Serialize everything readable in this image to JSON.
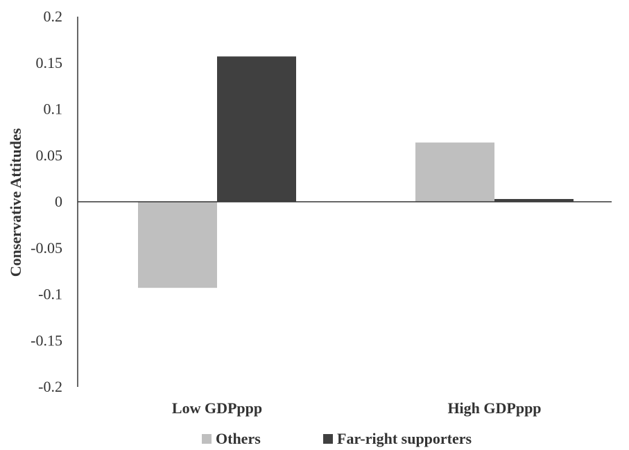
{
  "chart_data": {
    "type": "bar",
    "categories": [
      "Low GDPppp",
      "High GDPppp"
    ],
    "series": [
      {
        "name": "Others",
        "values": [
          -0.093,
          0.064
        ],
        "color": "#bfbfbf"
      },
      {
        "name": "Far-right supporters",
        "values": [
          0.157,
          0.003
        ],
        "color": "#404040"
      }
    ],
    "ylabel": "Conservative Attitudes",
    "xlabel": "",
    "ylim": [
      -0.2,
      0.2
    ],
    "yticks": [
      0.2,
      0.15,
      0.1,
      0.05,
      0,
      -0.05,
      -0.1,
      -0.15,
      -0.2
    ],
    "ytick_labels": [
      "0.2",
      "0.15",
      "0.1",
      "0.05",
      "0",
      "-0.05",
      "-0.1",
      "-0.15",
      "-0.2"
    ],
    "grid": false,
    "legend_position": "bottom"
  }
}
